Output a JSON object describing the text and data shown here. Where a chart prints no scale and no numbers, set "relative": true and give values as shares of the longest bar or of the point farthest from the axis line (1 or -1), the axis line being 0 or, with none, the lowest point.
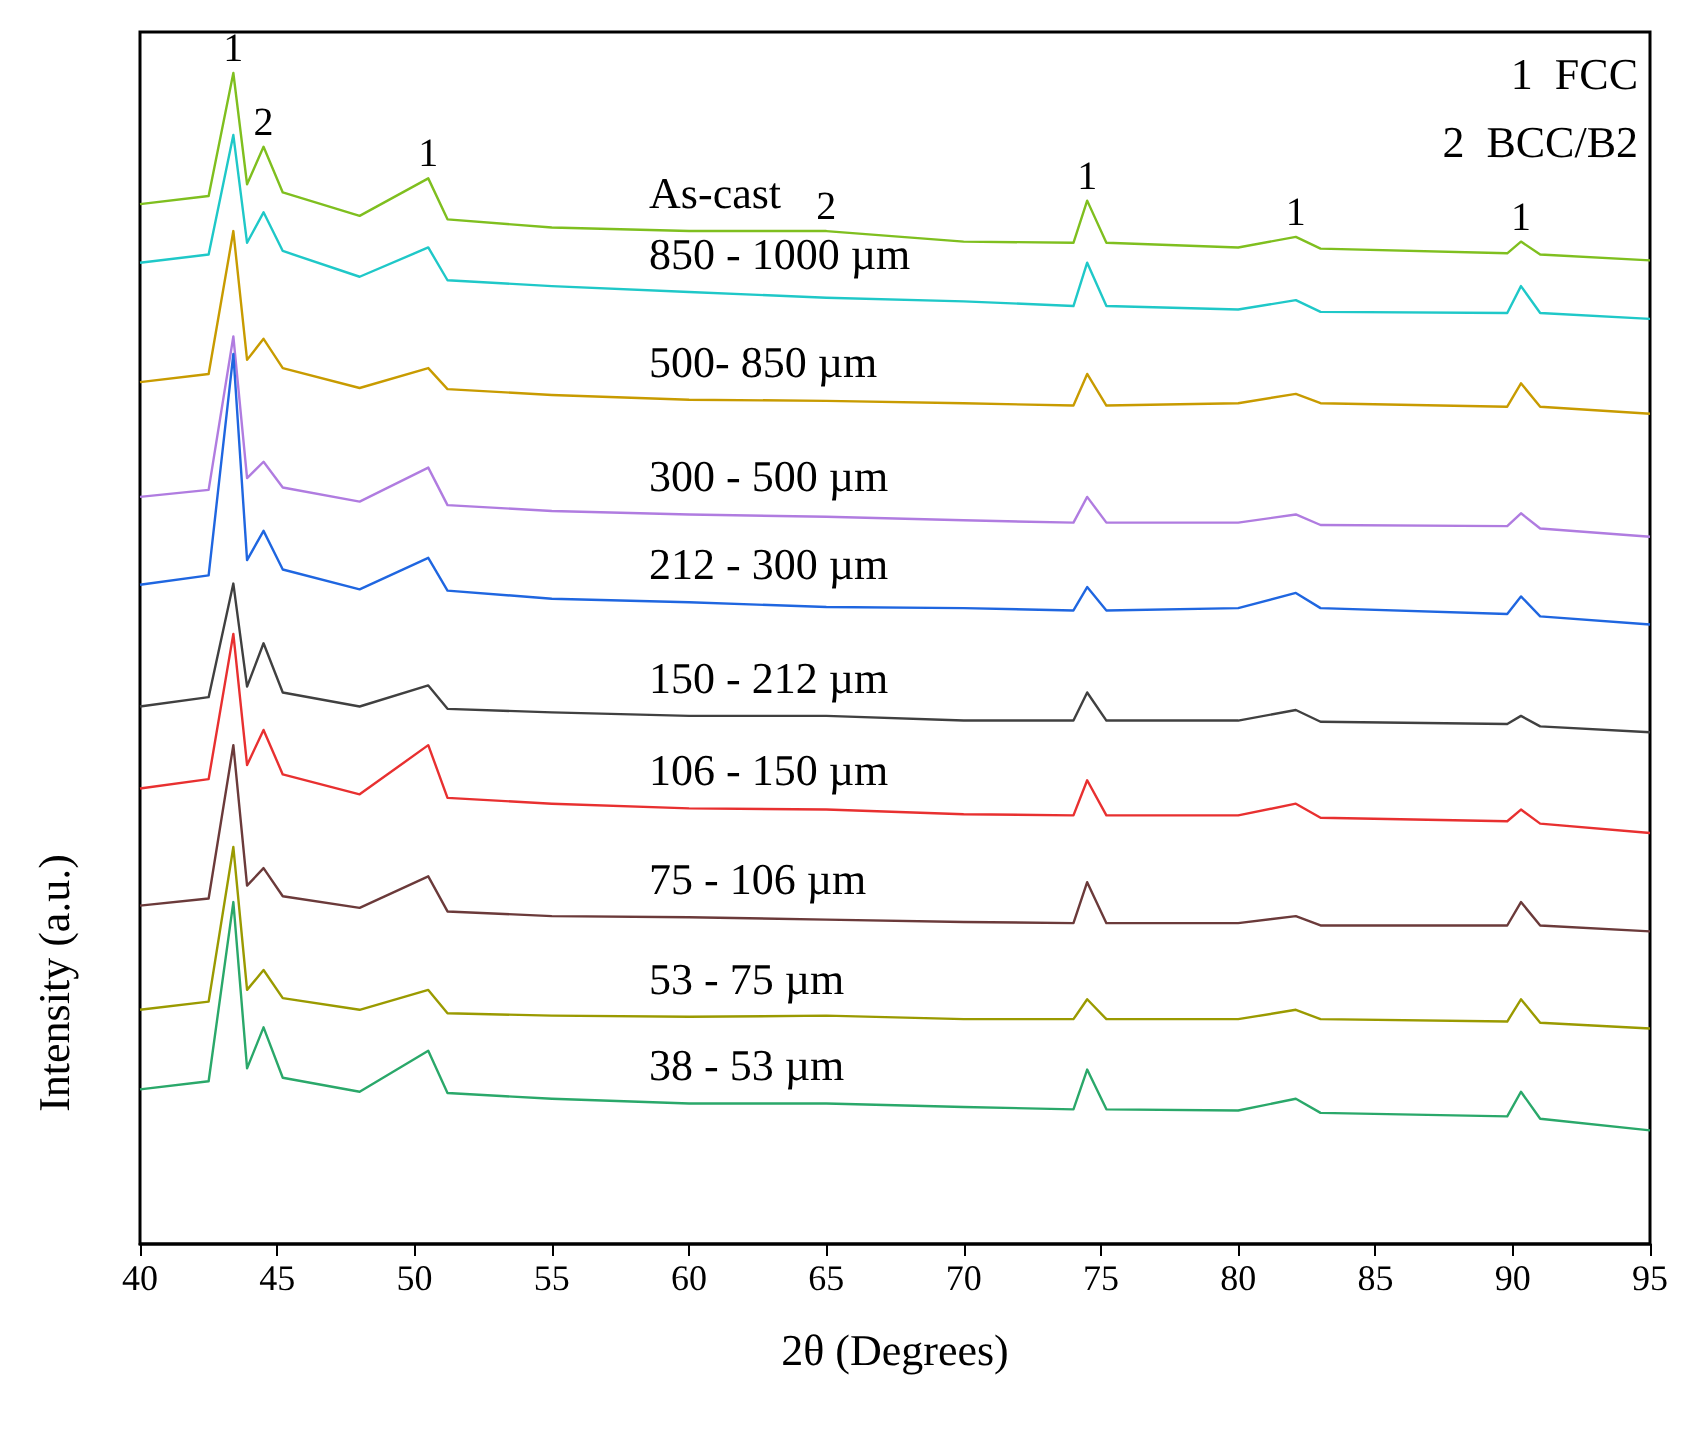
{
  "chart_data": {
    "type": "line",
    "relative": true,
    "xlabel": "2θ (Degrees)",
    "ylabel": "Intensity (a.u.)",
    "xlim": [
      40,
      95
    ],
    "xticks": [
      40,
      45,
      50,
      55,
      60,
      65,
      70,
      75,
      80,
      85,
      90,
      95
    ],
    "grid": false,
    "legend": false,
    "marker": "none",
    "line_style": "solid",
    "x": [
      40,
      42.5,
      43.4,
      43.9,
      44.5,
      45.2,
      48,
      50.5,
      51.2,
      55,
      60,
      65,
      70,
      74,
      74.5,
      75.2,
      80,
      82.1,
      83,
      89.8,
      90.3,
      91,
      95
    ],
    "series": [
      {
        "name": "As-cast",
        "color": "#7fbf1f",
        "values": [
          0.888,
          0.895,
          1.0,
          0.905,
          0.937,
          0.898,
          0.878,
          0.91,
          0.875,
          0.868,
          0.865,
          0.865,
          0.856,
          0.855,
          0.891,
          0.855,
          0.851,
          0.86,
          0.85,
          0.846,
          0.856,
          0.845,
          0.84
        ]
      },
      {
        "name": "850 - 1000 µm",
        "color": "#1fc8c8",
        "values": [
          0.838,
          0.845,
          0.947,
          0.855,
          0.881,
          0.848,
          0.826,
          0.851,
          0.823,
          0.818,
          0.813,
          0.808,
          0.805,
          0.801,
          0.838,
          0.801,
          0.798,
          0.806,
          0.796,
          0.795,
          0.818,
          0.795,
          0.79
        ]
      },
      {
        "name": "500- 850 µm",
        "color": "#c89b00",
        "values": [
          0.736,
          0.743,
          0.865,
          0.755,
          0.773,
          0.748,
          0.731,
          0.748,
          0.73,
          0.725,
          0.721,
          0.72,
          0.718,
          0.716,
          0.743,
          0.716,
          0.718,
          0.726,
          0.718,
          0.715,
          0.735,
          0.715,
          0.709
        ]
      },
      {
        "name": "300 - 500 µm",
        "color": "#b07ce0",
        "values": [
          0.638,
          0.644,
          0.775,
          0.654,
          0.668,
          0.646,
          0.634,
          0.663,
          0.631,
          0.626,
          0.623,
          0.621,
          0.618,
          0.616,
          0.638,
          0.616,
          0.616,
          0.623,
          0.614,
          0.613,
          0.624,
          0.611,
          0.604
        ]
      },
      {
        "name": "212 - 300 µm",
        "color": "#1f66e0",
        "values": [
          0.563,
          0.571,
          0.76,
          0.584,
          0.609,
          0.576,
          0.559,
          0.586,
          0.558,
          0.551,
          0.548,
          0.544,
          0.543,
          0.541,
          0.561,
          0.541,
          0.543,
          0.556,
          0.543,
          0.538,
          0.553,
          0.536,
          0.529
        ]
      },
      {
        "name": "150 - 212 µm",
        "color": "#404040",
        "values": [
          0.459,
          0.467,
          0.564,
          0.476,
          0.513,
          0.471,
          0.459,
          0.477,
          0.457,
          0.454,
          0.451,
          0.451,
          0.447,
          0.447,
          0.471,
          0.447,
          0.447,
          0.456,
          0.446,
          0.444,
          0.451,
          0.442,
          0.437
        ]
      },
      {
        "name": "106 - 150 µm",
        "color": "#e83030",
        "values": [
          0.389,
          0.397,
          0.521,
          0.409,
          0.439,
          0.401,
          0.384,
          0.426,
          0.381,
          0.376,
          0.372,
          0.371,
          0.367,
          0.366,
          0.396,
          0.366,
          0.366,
          0.376,
          0.364,
          0.361,
          0.371,
          0.359,
          0.351
        ]
      },
      {
        "name": "75 - 106 µm",
        "color": "#6b3a3a",
        "values": [
          0.289,
          0.295,
          0.426,
          0.306,
          0.321,
          0.297,
          0.287,
          0.314,
          0.284,
          0.28,
          0.279,
          0.277,
          0.275,
          0.274,
          0.309,
          0.274,
          0.274,
          0.28,
          0.272,
          0.272,
          0.292,
          0.272,
          0.267
        ]
      },
      {
        "name": "53 - 75 µm",
        "color": "#9a9a00",
        "values": [
          0.2,
          0.207,
          0.339,
          0.217,
          0.234,
          0.21,
          0.2,
          0.217,
          0.197,
          0.195,
          0.194,
          0.195,
          0.192,
          0.192,
          0.209,
          0.192,
          0.192,
          0.2,
          0.192,
          0.19,
          0.209,
          0.189,
          0.184
        ]
      },
      {
        "name": "38 - 53 µm",
        "color": "#2aa86a",
        "values": [
          0.132,
          0.139,
          0.292,
          0.15,
          0.185,
          0.142,
          0.13,
          0.165,
          0.129,
          0.124,
          0.12,
          0.12,
          0.117,
          0.115,
          0.149,
          0.115,
          0.114,
          0.124,
          0.112,
          0.109,
          0.13,
          0.107,
          0.097
        ]
      }
    ],
    "annotations": [
      {
        "text": "1",
        "x": 43.4,
        "y": 1.0
      },
      {
        "text": "2",
        "x": 44.5,
        "y": 0.937
      },
      {
        "text": "1",
        "x": 50.5,
        "y": 0.91
      },
      {
        "text": "2",
        "x": 65,
        "y": 0.865
      },
      {
        "text": "1",
        "x": 74.5,
        "y": 0.891
      },
      {
        "text": "1",
        "x": 82.1,
        "y": 0.86
      },
      {
        "text": "1",
        "x": 90.3,
        "y": 0.856
      },
      "1  FCC",
      "2  BCC/B2"
    ]
  }
}
